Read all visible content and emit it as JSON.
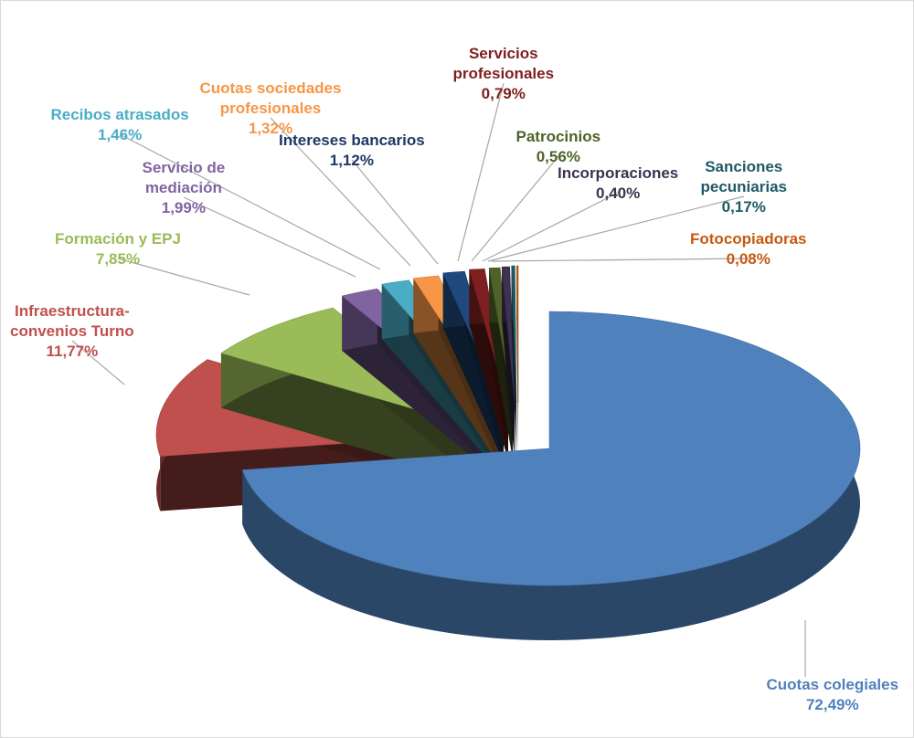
{
  "chart_data": {
    "type": "pie",
    "variant": "3d-exploded",
    "title": "",
    "legend": "none",
    "slices": [
      {
        "name": "Cuotas colegiales",
        "value": 72.49,
        "label": "72,49%",
        "color": "#4F81BD"
      },
      {
        "name": "Infraestructura-\nconvenios Turno",
        "value": 11.77,
        "label": "11,77%",
        "color": "#C0504D"
      },
      {
        "name": "Formación y EPJ",
        "value": 7.85,
        "label": "7,85%",
        "color": "#9BBB59"
      },
      {
        "name": "Servicio de\nmediación",
        "value": 1.99,
        "label": "1,99%",
        "color": "#8064A2"
      },
      {
        "name": "Recibos atrasados",
        "value": 1.46,
        "label": "1,46%",
        "color": "#4BACC6"
      },
      {
        "name": "Cuotas sociedades\nprofesionales",
        "value": 1.32,
        "label": "1,32%",
        "color": "#F79646"
      },
      {
        "name": "Intereses bancarios",
        "value": 1.12,
        "label": "1,12%",
        "color": "#1F497D"
      },
      {
        "name": "Servicios\nprofesionales",
        "value": 0.79,
        "label": "0,79%",
        "color": "#7F1F1F"
      },
      {
        "name": "Patrocinios",
        "value": 0.56,
        "label": "0,56%",
        "color": "#4F6228"
      },
      {
        "name": "Incorporaciones",
        "value": 0.4,
        "label": "0,40%",
        "color": "#3F3151"
      },
      {
        "name": "Sanciones\npecuniarias",
        "value": 0.17,
        "label": "0,17%",
        "color": "#215967"
      },
      {
        "name": "Fotocopiadoras",
        "value": 0.08,
        "label": "0,08%",
        "color": "#C55A11"
      }
    ]
  },
  "label_colors": {
    "Cuotas colegiales": "#4F81BD",
    "Infraestructura-convenios Turno": "#C0504D",
    "Formación y EPJ": "#9BBB59",
    "Servicio de mediación": "#8064A2",
    "Recibos atrasados": "#4BACC6",
    "Cuotas sociedades profesionales": "#F79646",
    "Intereses bancarios": "#1F497D",
    "Servicios profesionales": "#7F1F1F",
    "Patrocinios": "#4F6228",
    "Incorporaciones": "#3F3151",
    "Sanciones pecuniarias": "#215967",
    "Fotocopiadoras": "#C55A11"
  }
}
